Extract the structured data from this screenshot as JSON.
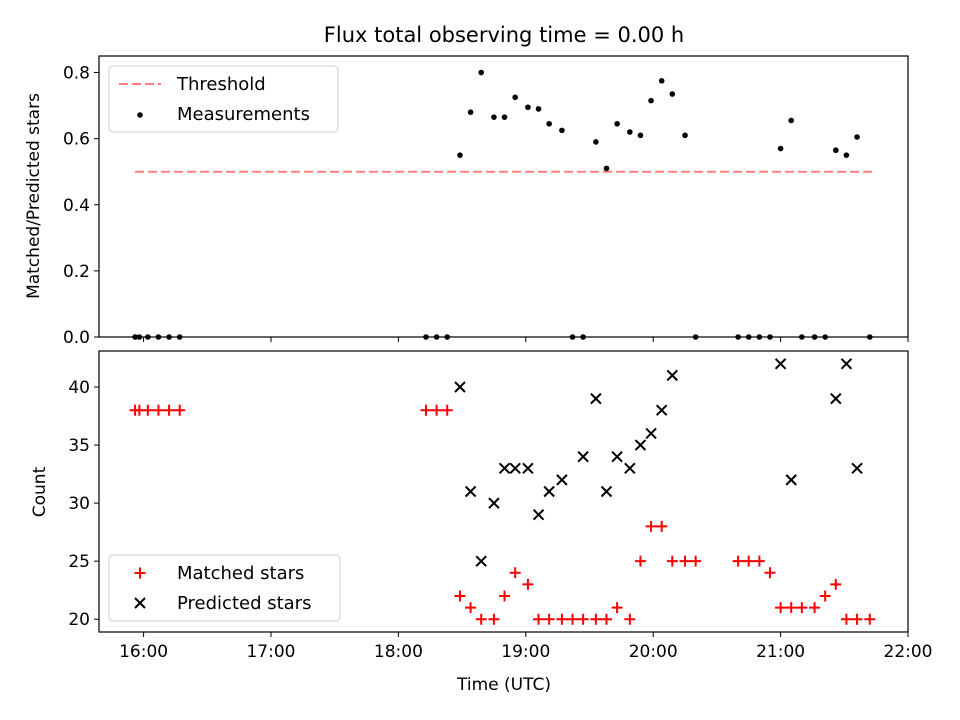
{
  "chart_data": [
    {
      "type": "scatter",
      "title": "Flux total observing time = 0.00 h",
      "xlabel": "",
      "ylabel": "Matched/Predicted stars",
      "xlim": [
        "15:39",
        "22:00"
      ],
      "ylim": [
        0,
        0.85
      ],
      "yticks": [
        0.0,
        0.2,
        0.4,
        0.6,
        0.8
      ],
      "ytick_labels": [
        "0.0",
        "0.2",
        "0.4",
        "0.6",
        "0.8"
      ],
      "xticks": [
        "16:00",
        "17:00",
        "18:00",
        "19:00",
        "20:00",
        "21:00",
        "22:00"
      ],
      "legend_position": "upper left",
      "grid": false,
      "threshold": {
        "name": "Threshold",
        "value": 0.5,
        "x_start": "15:56",
        "x_end": "21:44",
        "color": "#ff7f7f",
        "style": "dashed"
      },
      "series": [
        {
          "name": "Measurements",
          "marker": "dot",
          "color": "#000000",
          "x": [
            "15:56",
            "15:58",
            "16:02",
            "16:07",
            "16:12",
            "16:17",
            "18:13",
            "18:18",
            "18:23",
            "18:29",
            "18:34",
            "18:39",
            "18:45",
            "18:50",
            "18:55",
            "19:01",
            "19:06",
            "19:11",
            "19:17",
            "19:22",
            "19:27",
            "19:33",
            "19:38",
            "19:43",
            "19:49",
            "19:54",
            "19:59",
            "20:04",
            "20:09",
            "20:15",
            "20:20",
            "20:40",
            "20:45",
            "20:50",
            "20:55",
            "21:00",
            "21:05",
            "21:10",
            "21:16",
            "21:21",
            "21:26",
            "21:31",
            "21:36",
            "21:42"
          ],
          "y": [
            0,
            0,
            0,
            0,
            0,
            0,
            0,
            0,
            0,
            0.55,
            0.68,
            0.8,
            0.665,
            0.665,
            0.725,
            0.695,
            0.69,
            0.645,
            0.625,
            0,
            0,
            0.59,
            0.51,
            0.645,
            0.62,
            0.61,
            0.715,
            0.775,
            0.735,
            0.61,
            0,
            0,
            0,
            0,
            0,
            0.57,
            0.655,
            0,
            0,
            0,
            0.565,
            0.55,
            0.605,
            0
          ]
        }
      ]
    },
    {
      "type": "scatter",
      "title": "",
      "xlabel": "Time (UTC)",
      "ylabel": "Count",
      "xlim": [
        "15:39",
        "22:00"
      ],
      "ylim": [
        18.9,
        43.1
      ],
      "yticks": [
        20,
        25,
        30,
        35,
        40
      ],
      "ytick_labels": [
        "20",
        "25",
        "30",
        "35",
        "40"
      ],
      "xticks": [
        "16:00",
        "17:00",
        "18:00",
        "19:00",
        "20:00",
        "21:00",
        "22:00"
      ],
      "legend_position": "lower left",
      "grid": false,
      "series": [
        {
          "name": "Matched stars",
          "marker": "plus",
          "color": "#ff0000",
          "x": [
            "15:56",
            "15:58",
            "16:02",
            "16:07",
            "16:12",
            "16:17",
            "18:13",
            "18:18",
            "18:23",
            "18:29",
            "18:34",
            "18:39",
            "18:45",
            "18:50",
            "18:55",
            "19:01",
            "19:06",
            "19:11",
            "19:17",
            "19:22",
            "19:27",
            "19:33",
            "19:38",
            "19:43",
            "19:49",
            "19:54",
            "19:59",
            "20:04",
            "20:09",
            "20:15",
            "20:20",
            "20:40",
            "20:45",
            "20:50",
            "20:55",
            "21:00",
            "21:05",
            "21:10",
            "21:16",
            "21:21",
            "21:26",
            "21:31",
            "21:36",
            "21:42"
          ],
          "y": [
            38,
            38,
            38,
            38,
            38,
            38,
            38,
            38,
            38,
            22,
            21,
            20,
            20,
            22,
            24,
            23,
            20,
            20,
            20,
            20,
            20,
            20,
            20,
            21,
            20,
            25,
            28,
            28,
            25,
            25,
            25,
            25,
            25,
            25,
            24,
            21,
            21,
            21,
            21,
            22,
            23,
            20,
            20,
            20
          ]
        },
        {
          "name": "Predicted stars",
          "marker": "x",
          "color": "#000000",
          "x": [
            "18:29",
            "18:34",
            "18:39",
            "18:45",
            "18:50",
            "18:55",
            "19:01",
            "19:06",
            "19:11",
            "19:17",
            "19:27",
            "19:33",
            "19:38",
            "19:43",
            "19:49",
            "19:54",
            "19:59",
            "20:04",
            "20:09",
            "21:00",
            "21:05",
            "21:26",
            "21:31",
            "21:36"
          ],
          "y": [
            40,
            31,
            25,
            30,
            33,
            33,
            33,
            29,
            31,
            32,
            34,
            39,
            31,
            34,
            33,
            35,
            36,
            38,
            41,
            42,
            32,
            39,
            42,
            33
          ]
        }
      ]
    }
  ]
}
